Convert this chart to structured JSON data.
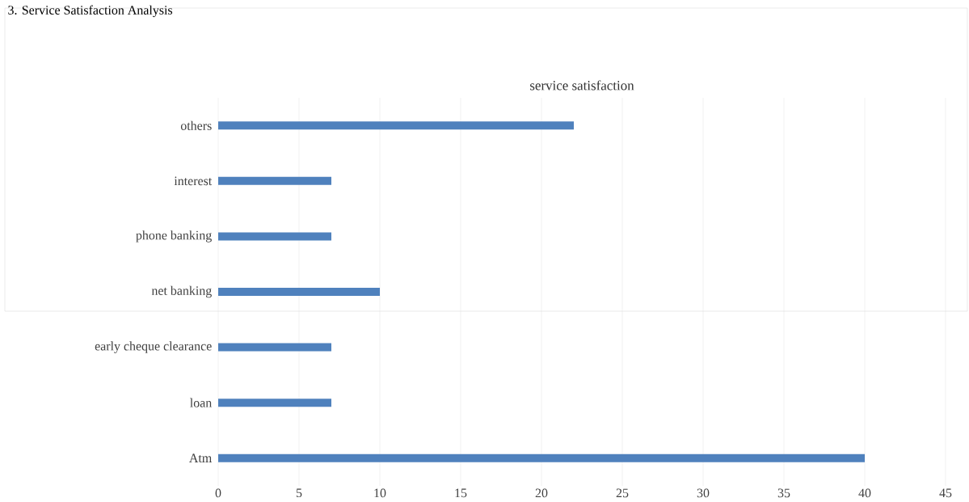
{
  "chart_data": {
    "type": "bar",
    "orientation": "horizontal",
    "title": "service satisfaction",
    "annotations": [
      "3.  Service Satisfaction Analysis"
    ],
    "categories": [
      "others",
      "interest",
      "phone banking",
      "net banking",
      "early cheque clearance",
      "loan",
      "Atm"
    ],
    "values": [
      22,
      7,
      7,
      10,
      7,
      7,
      40
    ],
    "color": "#4f81bd",
    "xlim": [
      0,
      45
    ],
    "xticks": [
      0,
      5,
      10,
      15,
      20,
      25,
      30,
      35,
      40,
      45
    ],
    "grid": "x"
  }
}
